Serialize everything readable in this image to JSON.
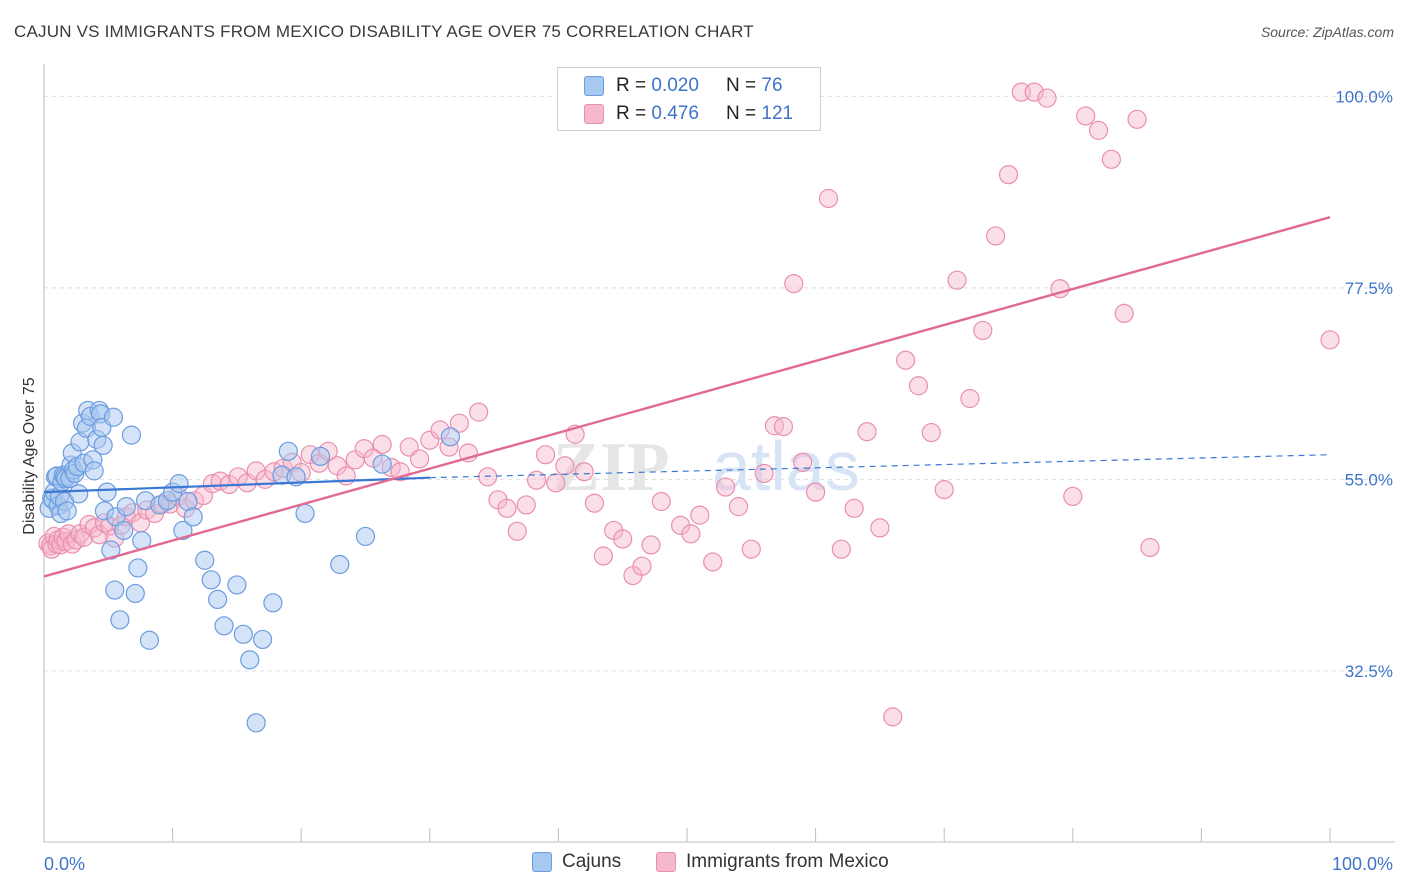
{
  "header": {
    "title": "CAJUN VS IMMIGRANTS FROM MEXICO DISABILITY AGE OVER 75 CORRELATION CHART",
    "source": "Source: ZipAtlas.com"
  },
  "watermark": {
    "part1": "ZIP",
    "part2": "atlas"
  },
  "legend_top": {
    "rows": [
      {
        "r_label": "R = ",
        "r_value": "0.020",
        "n_label": "N = ",
        "n_value": "76",
        "color": "#a9c8f0"
      },
      {
        "r_label": "R = ",
        "r_value": "0.476",
        "n_label": "N = ",
        "n_value": "121",
        "color": "#f6b8cc"
      }
    ]
  },
  "legend_bottom": [
    {
      "label": "Cajuns",
      "color": "#a9c8f0"
    },
    {
      "label": "Immigrants from Mexico",
      "color": "#f6b8cc"
    }
  ],
  "colors": {
    "blue_stroke": "#6a9de0",
    "blue_fill": "#a9c8f0",
    "blue_line": "#3a78d4",
    "pink_stroke": "#ea8fae",
    "pink_fill": "#f6b8cc",
    "pink_line": "#e06a92",
    "tick_label": "#3f74c9",
    "grid": "#dddddd"
  },
  "chart_data": {
    "type": "scatter",
    "title": "CAJUN VS IMMIGRANTS FROM MEXICO DISABILITY AGE OVER 75 CORRELATION CHART",
    "xlabel": "",
    "ylabel": "Disability Age Over 75",
    "xlim": [
      0,
      100
    ],
    "ylim": [
      12.4,
      103.8
    ],
    "x_tick_labels": [
      "0.0%",
      "100.0%"
    ],
    "y_ticks": [
      32.5,
      55.0,
      77.5,
      100.0
    ],
    "y_tick_labels": [
      "32.5%",
      "55.0%",
      "77.5%",
      "100.0%"
    ],
    "grid": true,
    "legend_placement": "bottom-center",
    "series": [
      {
        "name": "Cajuns",
        "R": 0.02,
        "N": 76,
        "trend": {
          "x": [
            0,
            30,
            100
          ],
          "y": [
            53.5,
            55.2,
            57.9
          ],
          "solid_until": 30
        },
        "points": [
          [
            0.4,
            51.6
          ],
          [
            0.6,
            52.8
          ],
          [
            0.7,
            52.6
          ],
          [
            0.8,
            53.5
          ],
          [
            0.9,
            55.3
          ],
          [
            1.0,
            55.4
          ],
          [
            1.1,
            51.9
          ],
          [
            1.2,
            53.0
          ],
          [
            1.3,
            51.0
          ],
          [
            1.4,
            54.7
          ],
          [
            1.5,
            55.5
          ],
          [
            1.6,
            55.3
          ],
          [
            1.6,
            52.4
          ],
          [
            1.7,
            55.1
          ],
          [
            1.8,
            51.3
          ],
          [
            2.0,
            55.1
          ],
          [
            2.1,
            56.7
          ],
          [
            2.2,
            58.1
          ],
          [
            2.3,
            56.1
          ],
          [
            2.4,
            55.7
          ],
          [
            2.6,
            56.5
          ],
          [
            2.7,
            53.3
          ],
          [
            2.8,
            59.4
          ],
          [
            3.0,
            61.6
          ],
          [
            3.1,
            56.9
          ],
          [
            3.3,
            61.0
          ],
          [
            3.4,
            63.1
          ],
          [
            3.6,
            62.4
          ],
          [
            3.8,
            57.3
          ],
          [
            3.9,
            56.0
          ],
          [
            4.1,
            59.7
          ],
          [
            4.3,
            63.1
          ],
          [
            4.4,
            62.7
          ],
          [
            4.5,
            61.1
          ],
          [
            4.6,
            59.0
          ],
          [
            4.7,
            51.3
          ],
          [
            4.9,
            53.5
          ],
          [
            5.2,
            46.7
          ],
          [
            5.4,
            62.3
          ],
          [
            5.5,
            42.0
          ],
          [
            5.6,
            50.6
          ],
          [
            5.9,
            38.5
          ],
          [
            6.2,
            49.0
          ],
          [
            6.4,
            51.8
          ],
          [
            6.8,
            60.2
          ],
          [
            7.1,
            41.6
          ],
          [
            7.3,
            44.6
          ],
          [
            7.6,
            47.8
          ],
          [
            7.9,
            52.5
          ],
          [
            8.2,
            36.1
          ],
          [
            9.0,
            52.0
          ],
          [
            9.6,
            52.5
          ],
          [
            10.0,
            53.5
          ],
          [
            10.5,
            54.5
          ],
          [
            10.8,
            49.0
          ],
          [
            11.2,
            52.4
          ],
          [
            11.6,
            50.6
          ],
          [
            12.5,
            45.5
          ],
          [
            13.0,
            43.2
          ],
          [
            13.5,
            40.9
          ],
          [
            14.0,
            37.8
          ],
          [
            15.0,
            42.6
          ],
          [
            15.5,
            36.8
          ],
          [
            16.0,
            33.8
          ],
          [
            16.5,
            26.4
          ],
          [
            17.0,
            36.2
          ],
          [
            17.8,
            40.5
          ],
          [
            18.5,
            55.5
          ],
          [
            19.0,
            58.3
          ],
          [
            19.6,
            55.3
          ],
          [
            20.3,
            51.0
          ],
          [
            21.5,
            57.7
          ],
          [
            23.0,
            45.0
          ],
          [
            25.0,
            48.3
          ],
          [
            26.3,
            56.8
          ],
          [
            31.6,
            60.0
          ]
        ]
      },
      {
        "name": "Immigrants from Mexico",
        "R": 0.476,
        "N": 121,
        "trend": {
          "x": [
            0,
            100
          ],
          "y": [
            43.6,
            85.8
          ]
        },
        "points": [
          [
            0.3,
            47.5
          ],
          [
            0.5,
            47.2
          ],
          [
            0.6,
            46.8
          ],
          [
            0.8,
            48.3
          ],
          [
            1.0,
            47.4
          ],
          [
            1.1,
            47.9
          ],
          [
            1.3,
            47.3
          ],
          [
            1.5,
            48.2
          ],
          [
            1.7,
            47.7
          ],
          [
            1.9,
            48.6
          ],
          [
            2.2,
            47.4
          ],
          [
            2.5,
            47.9
          ],
          [
            2.8,
            48.6
          ],
          [
            3.1,
            48.2
          ],
          [
            3.5,
            49.7
          ],
          [
            3.9,
            49.3
          ],
          [
            4.3,
            48.5
          ],
          [
            4.7,
            49.9
          ],
          [
            5.1,
            49.5
          ],
          [
            5.5,
            48.1
          ],
          [
            6.0,
            49.6
          ],
          [
            6.4,
            50.6
          ],
          [
            6.9,
            51.1
          ],
          [
            7.5,
            49.9
          ],
          [
            8.0,
            51.4
          ],
          [
            8.6,
            51.0
          ],
          [
            9.2,
            52.1
          ],
          [
            9.8,
            52.1
          ],
          [
            10.4,
            53.0
          ],
          [
            11.0,
            51.6
          ],
          [
            11.7,
            52.5
          ],
          [
            12.4,
            53.1
          ],
          [
            13.1,
            54.5
          ],
          [
            13.7,
            54.8
          ],
          [
            14.4,
            54.4
          ],
          [
            15.1,
            55.3
          ],
          [
            15.8,
            54.6
          ],
          [
            16.5,
            56.0
          ],
          [
            17.2,
            55.0
          ],
          [
            17.9,
            55.9
          ],
          [
            18.6,
            56.3
          ],
          [
            19.3,
            57.0
          ],
          [
            20.0,
            55.8
          ],
          [
            20.7,
            57.9
          ],
          [
            21.4,
            56.9
          ],
          [
            22.1,
            58.3
          ],
          [
            22.8,
            56.6
          ],
          [
            23.5,
            55.4
          ],
          [
            24.2,
            57.3
          ],
          [
            24.9,
            58.6
          ],
          [
            25.6,
            57.5
          ],
          [
            26.3,
            59.1
          ],
          [
            27.0,
            56.4
          ],
          [
            27.7,
            55.9
          ],
          [
            28.4,
            58.8
          ],
          [
            29.2,
            57.4
          ],
          [
            30.0,
            59.6
          ],
          [
            30.8,
            60.8
          ],
          [
            31.5,
            58.8
          ],
          [
            32.3,
            61.6
          ],
          [
            33.0,
            58.1
          ],
          [
            33.8,
            62.9
          ],
          [
            34.5,
            55.3
          ],
          [
            35.3,
            52.6
          ],
          [
            36.0,
            51.6
          ],
          [
            36.8,
            48.9
          ],
          [
            37.5,
            52.0
          ],
          [
            38.3,
            54.9
          ],
          [
            39.0,
            57.9
          ],
          [
            39.8,
            54.6
          ],
          [
            40.5,
            56.6
          ],
          [
            41.3,
            60.3
          ],
          [
            42.0,
            55.9
          ],
          [
            42.8,
            52.2
          ],
          [
            43.5,
            46.0
          ],
          [
            44.3,
            49.0
          ],
          [
            45.0,
            48.0
          ],
          [
            45.8,
            43.7
          ],
          [
            46.5,
            44.8
          ],
          [
            47.2,
            47.3
          ],
          [
            48.0,
            52.4
          ],
          [
            49.5,
            49.6
          ],
          [
            50.3,
            48.6
          ],
          [
            51.0,
            50.8
          ],
          [
            52.0,
            45.3
          ],
          [
            53.0,
            54.1
          ],
          [
            54.0,
            51.8
          ],
          [
            55.0,
            46.8
          ],
          [
            56.0,
            55.7
          ],
          [
            56.8,
            61.3
          ],
          [
            57.5,
            61.2
          ],
          [
            58.3,
            78.0
          ],
          [
            59.0,
            57.0
          ],
          [
            60.0,
            53.5
          ],
          [
            61.0,
            88.0
          ],
          [
            62.0,
            46.8
          ],
          [
            63.0,
            51.6
          ],
          [
            64.0,
            60.6
          ],
          [
            65.0,
            49.3
          ],
          [
            66.0,
            27.1
          ],
          [
            67.0,
            69.0
          ],
          [
            68.0,
            66.0
          ],
          [
            69.0,
            60.5
          ],
          [
            70.0,
            53.8
          ],
          [
            71.0,
            78.4
          ],
          [
            72.0,
            64.5
          ],
          [
            73.0,
            72.5
          ],
          [
            74.0,
            83.6
          ],
          [
            75.0,
            90.8
          ],
          [
            76.0,
            100.5
          ],
          [
            77.0,
            100.5
          ],
          [
            78.0,
            99.8
          ],
          [
            79.0,
            77.4
          ],
          [
            80.0,
            53.0
          ],
          [
            81.0,
            97.7
          ],
          [
            82.0,
            96.0
          ],
          [
            83.0,
            92.6
          ],
          [
            84.0,
            74.5
          ],
          [
            85.0,
            97.3
          ],
          [
            86.0,
            47.0
          ],
          [
            100.0,
            71.4
          ]
        ]
      }
    ]
  }
}
